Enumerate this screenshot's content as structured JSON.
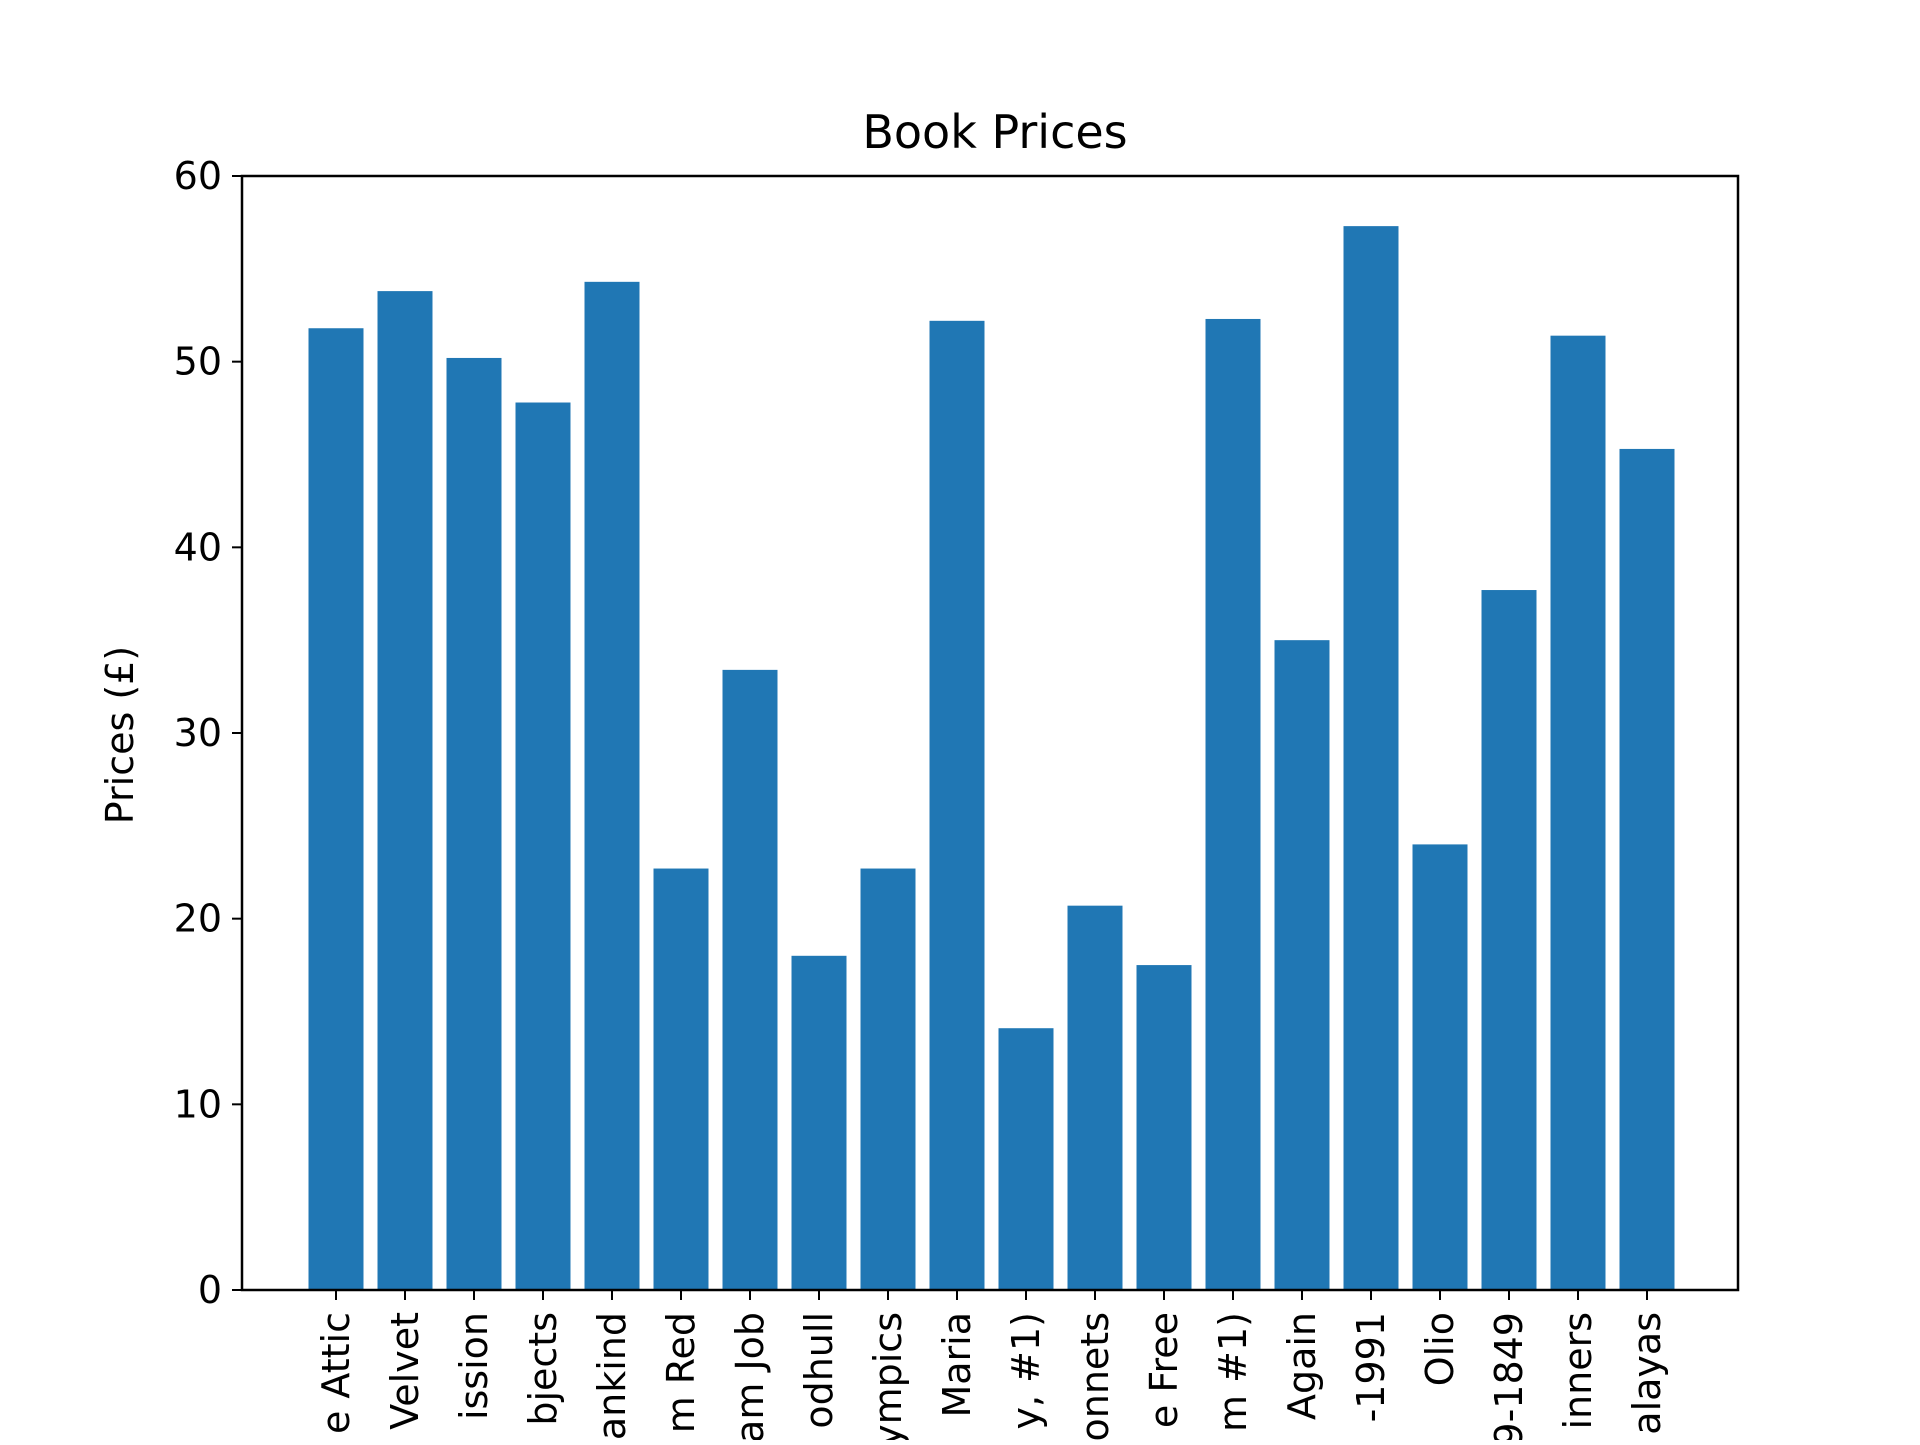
{
  "chart_data": {
    "type": "bar",
    "title": "Book Prices",
    "xlabel": "",
    "ylabel": "Prices (£)",
    "ylim": [
      0,
      60
    ],
    "yticks": [
      0,
      10,
      20,
      30,
      40,
      50,
      60
    ],
    "grid": false,
    "color": "#2077b4",
    "categories": [
      "e Attic",
      "Velvet",
      "ission",
      "bjects",
      "ankind",
      "m Red",
      "am Job",
      "odhull",
      "ympics",
      "Maria",
      "y, #1)",
      "onnets",
      "e Free",
      "m #1)",
      "Again",
      "-1991",
      "Olio",
      "9-1849",
      "inners",
      "alayas"
    ],
    "values": [
      51.8,
      53.8,
      50.2,
      47.8,
      54.3,
      22.7,
      33.4,
      18.0,
      22.7,
      52.2,
      14.1,
      20.7,
      17.5,
      52.3,
      35.0,
      57.3,
      24.0,
      37.7,
      51.4,
      45.3
    ]
  }
}
